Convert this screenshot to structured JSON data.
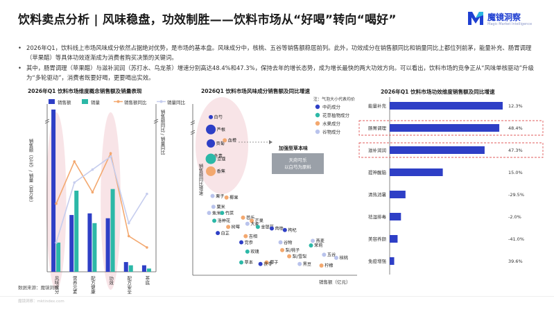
{
  "page": {
    "title": "饮料卖点分析 | 风味稳盘，功效制胜——饮料市场从“好喝”转向“喝好”",
    "logo_name": "魔镜洞察",
    "logo_sub": "Magic Market Intelligence",
    "bullets": [
      "2026年Q1，饮料线上市场风味成分依然占据绝对优势，是市场的基本盘。风味成分中，核桃、五谷等销售额稳居前列。此外，功效成分在销售额同比和销量同比上都位列前茅，能量补充、肠胃调理（苹果醋）等具体功效逐渐成为消费者购买决策的关键词。",
      "其中，肠胃调理（苹果醋）与滋补润润（苏打水、乌龙茶）增速分别高达48.4%和47.3%，保持去年的增长态势，成为增长最快的两大功效方向。可以看出，饮料市场的竞争正从“风味单核驱动”升级为“多轮驱动”，消费者既要好喝，更要喝出实效。"
    ],
    "source": "数据来源：魔镜洞察",
    "footer": "魔镜洞察：mktindex.com",
    "colors": {
      "accent": "#1f3fd1",
      "bar_dark": "#2e3fc6",
      "teal": "#2cb8a7",
      "orange": "#f3a86f",
      "lavender": "#b9c3ec",
      "pink_bg": "#f7dfe3"
    }
  },
  "chart_data": [
    {
      "type": "bar",
      "title": "2026年Q1 饮料市场维度概念销售额及销量表现",
      "ylabel": "销售额（亿元）/ 销量（百万件）",
      "y2label": "销售额同比 / 销量同比",
      "categories": [
        "风味成分",
        "营养元素",
        "配方健康",
        "功效",
        "配方安全",
        "茶底"
      ],
      "series": [
        {
          "name": "销售额",
          "kind": "bar",
          "color": "#2e3fc6",
          "values": [
            100,
            35,
            36,
            33,
            6,
            4
          ]
        },
        {
          "name": "销量",
          "kind": "bar",
          "color": "#2cb8a7",
          "values": [
            18,
            50,
            30,
            51,
            4,
            2
          ]
        },
        {
          "name": "销售额同比",
          "kind": "line",
          "color": "#f3a86f",
          "values": [
            42,
            68,
            49,
            73,
            22,
            15
          ]
        },
        {
          "name": "销量同比",
          "kind": "line",
          "color": "#c6cdee",
          "values": [
            18,
            55,
            63,
            71,
            30,
            48
          ]
        }
      ],
      "highlight_categories": [
        "风味成分",
        "功效"
      ],
      "legend": "top",
      "grid": false
    },
    {
      "type": "scatter",
      "title": "2026Q1 饮料市场风味成分销售额及同比增速",
      "xlabel": "销售额（亿元）",
      "ylabel": "销售额同比增速",
      "legend_title": "注：气泡大小代表均价",
      "legend": [
        {
          "name": "中药成分",
          "color": "#2e3fc6"
        },
        {
          "name": "花草植物成分",
          "color": "#2cb8a7"
        },
        {
          "name": "水果成分",
          "color": "#f3a86f"
        },
        {
          "name": "谷物成分",
          "color": "#b9c3ec"
        }
      ],
      "callout": {
        "title": "加强型草本味",
        "lines": [
          "天府可乐",
          "以白芍为原料"
        ]
      },
      "points": [
        {
          "label": "白芍",
          "group": "中药成分",
          "x": 0.8,
          "y": 96
        },
        {
          "label": "芦根",
          "group": "中药成分",
          "x": 0.8,
          "y": 88
        },
        {
          "label": "贡菊",
          "group": "中药成分",
          "x": 0.8,
          "y": 79
        },
        {
          "label": "血橙",
          "group": "水果成分",
          "x": 2.4,
          "y": 81
        },
        {
          "label": "冬青",
          "group": "花草植物成分",
          "x": 0.8,
          "y": 71
        },
        {
          "label": "豆蔻",
          "group": "花草植物成分",
          "x": 0.8,
          "y": 69
        },
        {
          "label": "香蕉",
          "group": "水果成分",
          "x": 0.8,
          "y": 61
        },
        {
          "label": "栗子",
          "group": "谷物成分",
          "x": 1.0,
          "y": 45
        },
        {
          "label": "椰果",
          "group": "水果成分",
          "x": 2.6,
          "y": 44
        },
        {
          "label": "粟米",
          "group": "谷物成分",
          "x": 1.1,
          "y": 38
        },
        {
          "label": "焦米",
          "group": "谷物成分",
          "x": 0.6,
          "y": 34
        },
        {
          "label": "竹蔗",
          "group": "花草植物成分",
          "x": 2.1,
          "y": 34
        },
        {
          "label": "芭乐",
          "group": "水果成分",
          "x": 4.5,
          "y": 31
        },
        {
          "label": "洛神花",
          "group": "花草植物成分",
          "x": 1.2,
          "y": 29
        },
        {
          "label": "芒果",
          "group": "水果成分",
          "x": 5.5,
          "y": 29
        },
        {
          "label": "大麦",
          "group": "谷物成分",
          "x": 5.0,
          "y": 27
        },
        {
          "label": "树莓",
          "group": "水果成分",
          "x": 2.8,
          "y": 25
        },
        {
          "label": "金银花",
          "group": "花草植物成分",
          "x": 6.2,
          "y": 25
        },
        {
          "label": "白芷",
          "group": "中药成分",
          "x": 1.6,
          "y": 21
        },
        {
          "label": "肉桂",
          "group": "中药成分",
          "x": 7.8,
          "y": 24
        },
        {
          "label": "枸杞",
          "group": "中药成分",
          "x": 9.3,
          "y": 23
        },
        {
          "label": "吉相",
          "group": "水果成分",
          "x": 4.8,
          "y": 19
        },
        {
          "label": "党参",
          "group": "中药成分",
          "x": 4.3,
          "y": 15
        },
        {
          "label": "谷物",
          "group": "谷物成分",
          "x": 8.8,
          "y": 15
        },
        {
          "label": "燕麦",
          "group": "谷物成分",
          "x": 12.5,
          "y": 16
        },
        {
          "label": "茉莉",
          "group": "花草植物成分",
          "x": 12.3,
          "y": 13
        },
        {
          "label": "梨/桃子",
          "group": "水果成分",
          "x": 9.0,
          "y": 10
        },
        {
          "label": "玫瑰",
          "group": "花草植物成分",
          "x": 5.0,
          "y": 9
        },
        {
          "label": "五谷",
          "group": "谷物成分",
          "x": 13.8,
          "y": 7
        },
        {
          "label": "核桃",
          "group": "谷物成分",
          "x": 15.2,
          "y": 5
        },
        {
          "label": "梨/雪梨",
          "group": "水果成分",
          "x": 9.8,
          "y": 6
        },
        {
          "label": "椰子",
          "group": "水果成分",
          "x": 7.2,
          "y": 2
        },
        {
          "label": "草本",
          "group": "花草植物成分",
          "x": 4.3,
          "y": 2
        },
        {
          "label": "茯苓",
          "group": "中药成分",
          "x": 6.5,
          "y": 1
        },
        {
          "label": "黑豆",
          "group": "谷物成分",
          "x": 11.0,
          "y": 1
        },
        {
          "label": "柠檬",
          "group": "水果成分",
          "x": 13.5,
          "y": 0
        }
      ],
      "grid": false
    },
    {
      "type": "bar",
      "orientation": "horizontal",
      "title": "2026年Q1 饮料市场功效维度销售额及同比增速",
      "categories": [
        "能量补充",
        "肠胃调理",
        "滋补润润",
        "提神醒脑",
        "清热消暑",
        "祛湿排毒",
        "美容养颜",
        "免疫增强"
      ],
      "values": [
        100,
        97,
        84,
        47,
        14,
        10,
        7,
        4
      ],
      "growth_labels": [
        "12.3%",
        "48.4%",
        "47.3%",
        "15.0%",
        "-29.5%",
        "-2.0%",
        "-41.0%",
        "39.6%"
      ],
      "highlight_categories": [
        "肠胃调理",
        "滋补润润"
      ],
      "grid": false
    }
  ]
}
